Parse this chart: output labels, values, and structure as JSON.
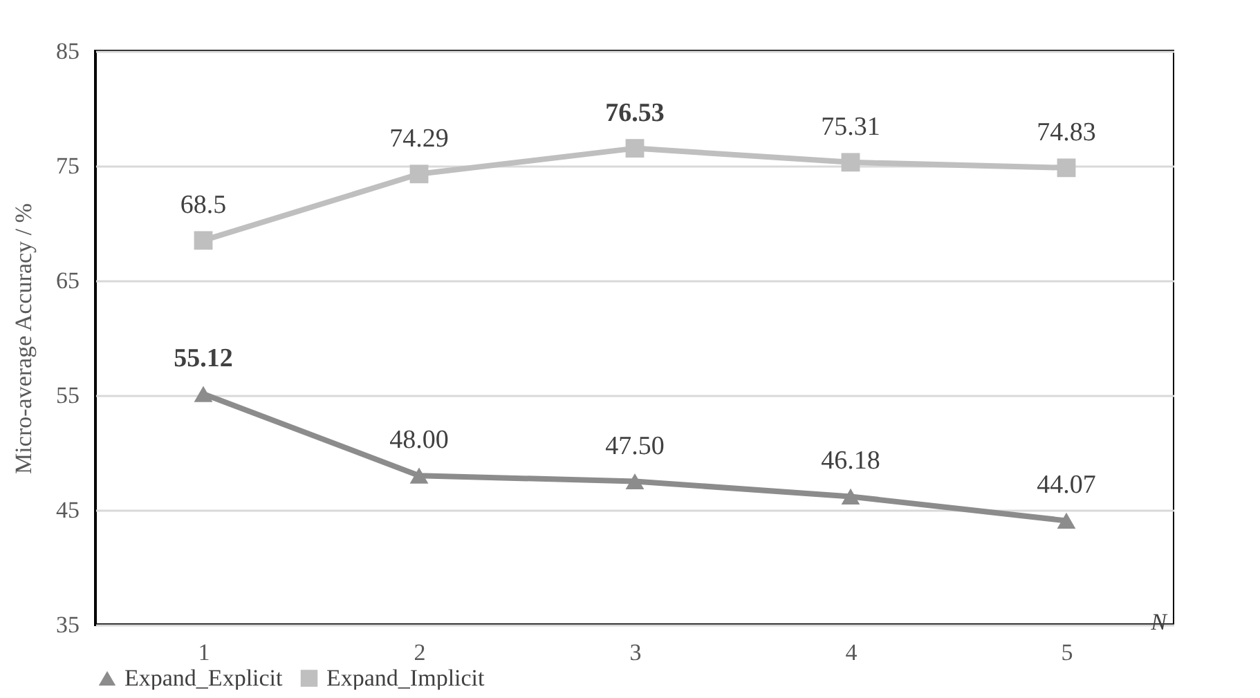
{
  "chart_data": {
    "type": "line",
    "xlabel": "N",
    "ylabel": "Micro-average Accuracy / %",
    "categories": [
      "1",
      "2",
      "3",
      "4",
      "5"
    ],
    "series": [
      {
        "name": "Expand_Explicit",
        "color": "#8c8c8c",
        "marker": "triangle",
        "values": [
          55.12,
          48.0,
          47.5,
          46.18,
          44.07
        ],
        "value_labels": [
          "55.12",
          "48.00",
          "47.50",
          "46.18",
          "44.07"
        ]
      },
      {
        "name": "Expand_Implicit",
        "color": "#bfbfbf",
        "marker": "square",
        "values": [
          68.5,
          74.29,
          76.53,
          75.31,
          74.83
        ],
        "value_labels": [
          "68.5",
          "74.29",
          "76.53",
          "75.31",
          "74.83"
        ]
      }
    ],
    "ylim": [
      35,
      85
    ],
    "yticks": [
      35,
      45,
      55,
      65,
      75,
      85
    ],
    "grid": "y",
    "legend": "bottom",
    "line_style": "solid"
  }
}
